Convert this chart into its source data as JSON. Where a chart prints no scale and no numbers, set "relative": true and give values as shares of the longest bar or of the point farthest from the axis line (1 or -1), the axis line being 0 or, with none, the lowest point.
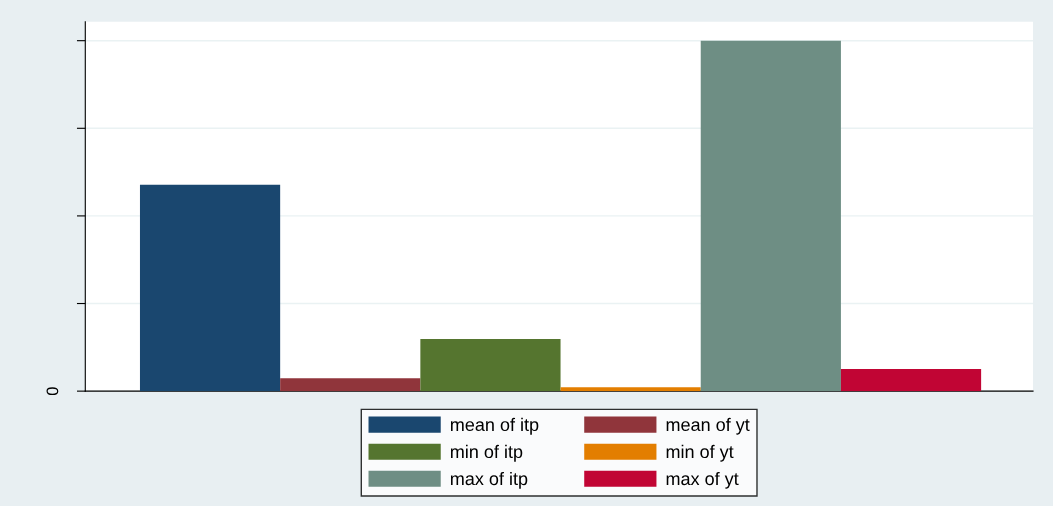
{
  "chart_data": {
    "type": "bar",
    "relative": true,
    "categories": [
      null
    ],
    "series": [
      {
        "name": "mean of itp",
        "color": "#1a476f",
        "values": [
          0.589
        ]
      },
      {
        "name": "mean of yt",
        "color": "#90353b",
        "values": [
          0.037
        ]
      },
      {
        "name": "min of itp",
        "color": "#55752f",
        "values": [
          0.149
        ]
      },
      {
        "name": "min of yt",
        "color": "#e37e00",
        "values": [
          0.011
        ]
      },
      {
        "name": "max of itp",
        "color": "#6e8e84",
        "values": [
          1
        ]
      },
      {
        "name": "max of yt",
        "color": "#c10534",
        "values": [
          0.063
        ]
      }
    ],
    "grid": "y",
    "legend": "bottom",
    "annotations": [
      "0"
    ]
  }
}
